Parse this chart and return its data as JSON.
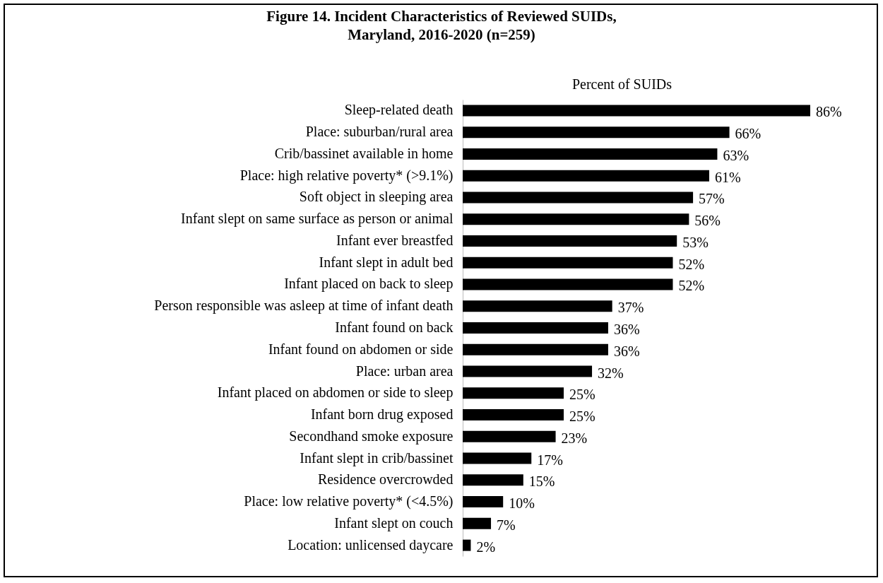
{
  "chart_data": {
    "type": "bar",
    "orientation": "horizontal",
    "title": "Figure 14. Incident Characteristics of Reviewed SUIDs,\nMaryland, 2016-2020 (n=259)",
    "xlabel": "Percent of SUIDs",
    "categories": [
      "Sleep-related death",
      "Place: suburban/rural area",
      "Crib/bassinet available in home",
      "Place: high relative poverty* (>9.1%)",
      "Soft object in sleeping area",
      "Infant slept on same surface as person or animal",
      "Infant ever breastfed",
      "Infant slept in adult bed",
      "Infant placed on back to sleep",
      "Person responsible was asleep at time of infant death",
      "Infant found on back",
      "Infant found on abdomen or side",
      "Place: urban area",
      "Infant placed on abdomen or side to sleep",
      "Infant born drug exposed",
      "Secondhand smoke exposure",
      "Infant slept in crib/bassinet",
      "Residence overcrowded",
      "Place: low relative poverty* (<4.5%)",
      "Infant slept on couch",
      "Location: unlicensed daycare"
    ],
    "values": [
      86,
      66,
      63,
      61,
      57,
      56,
      53,
      52,
      52,
      37,
      36,
      36,
      32,
      25,
      25,
      23,
      17,
      15,
      10,
      7,
      2
    ],
    "value_labels": [
      "86%",
      "66%",
      "63%",
      "61%",
      "57%",
      "56%",
      "53%",
      "52%",
      "52%",
      "37%",
      "36%",
      "36%",
      "32%",
      "25%",
      "25%",
      "23%",
      "17%",
      "15%",
      "10%",
      "7%",
      "2%"
    ],
    "color": "#000000",
    "tick_labels": "y"
  }
}
